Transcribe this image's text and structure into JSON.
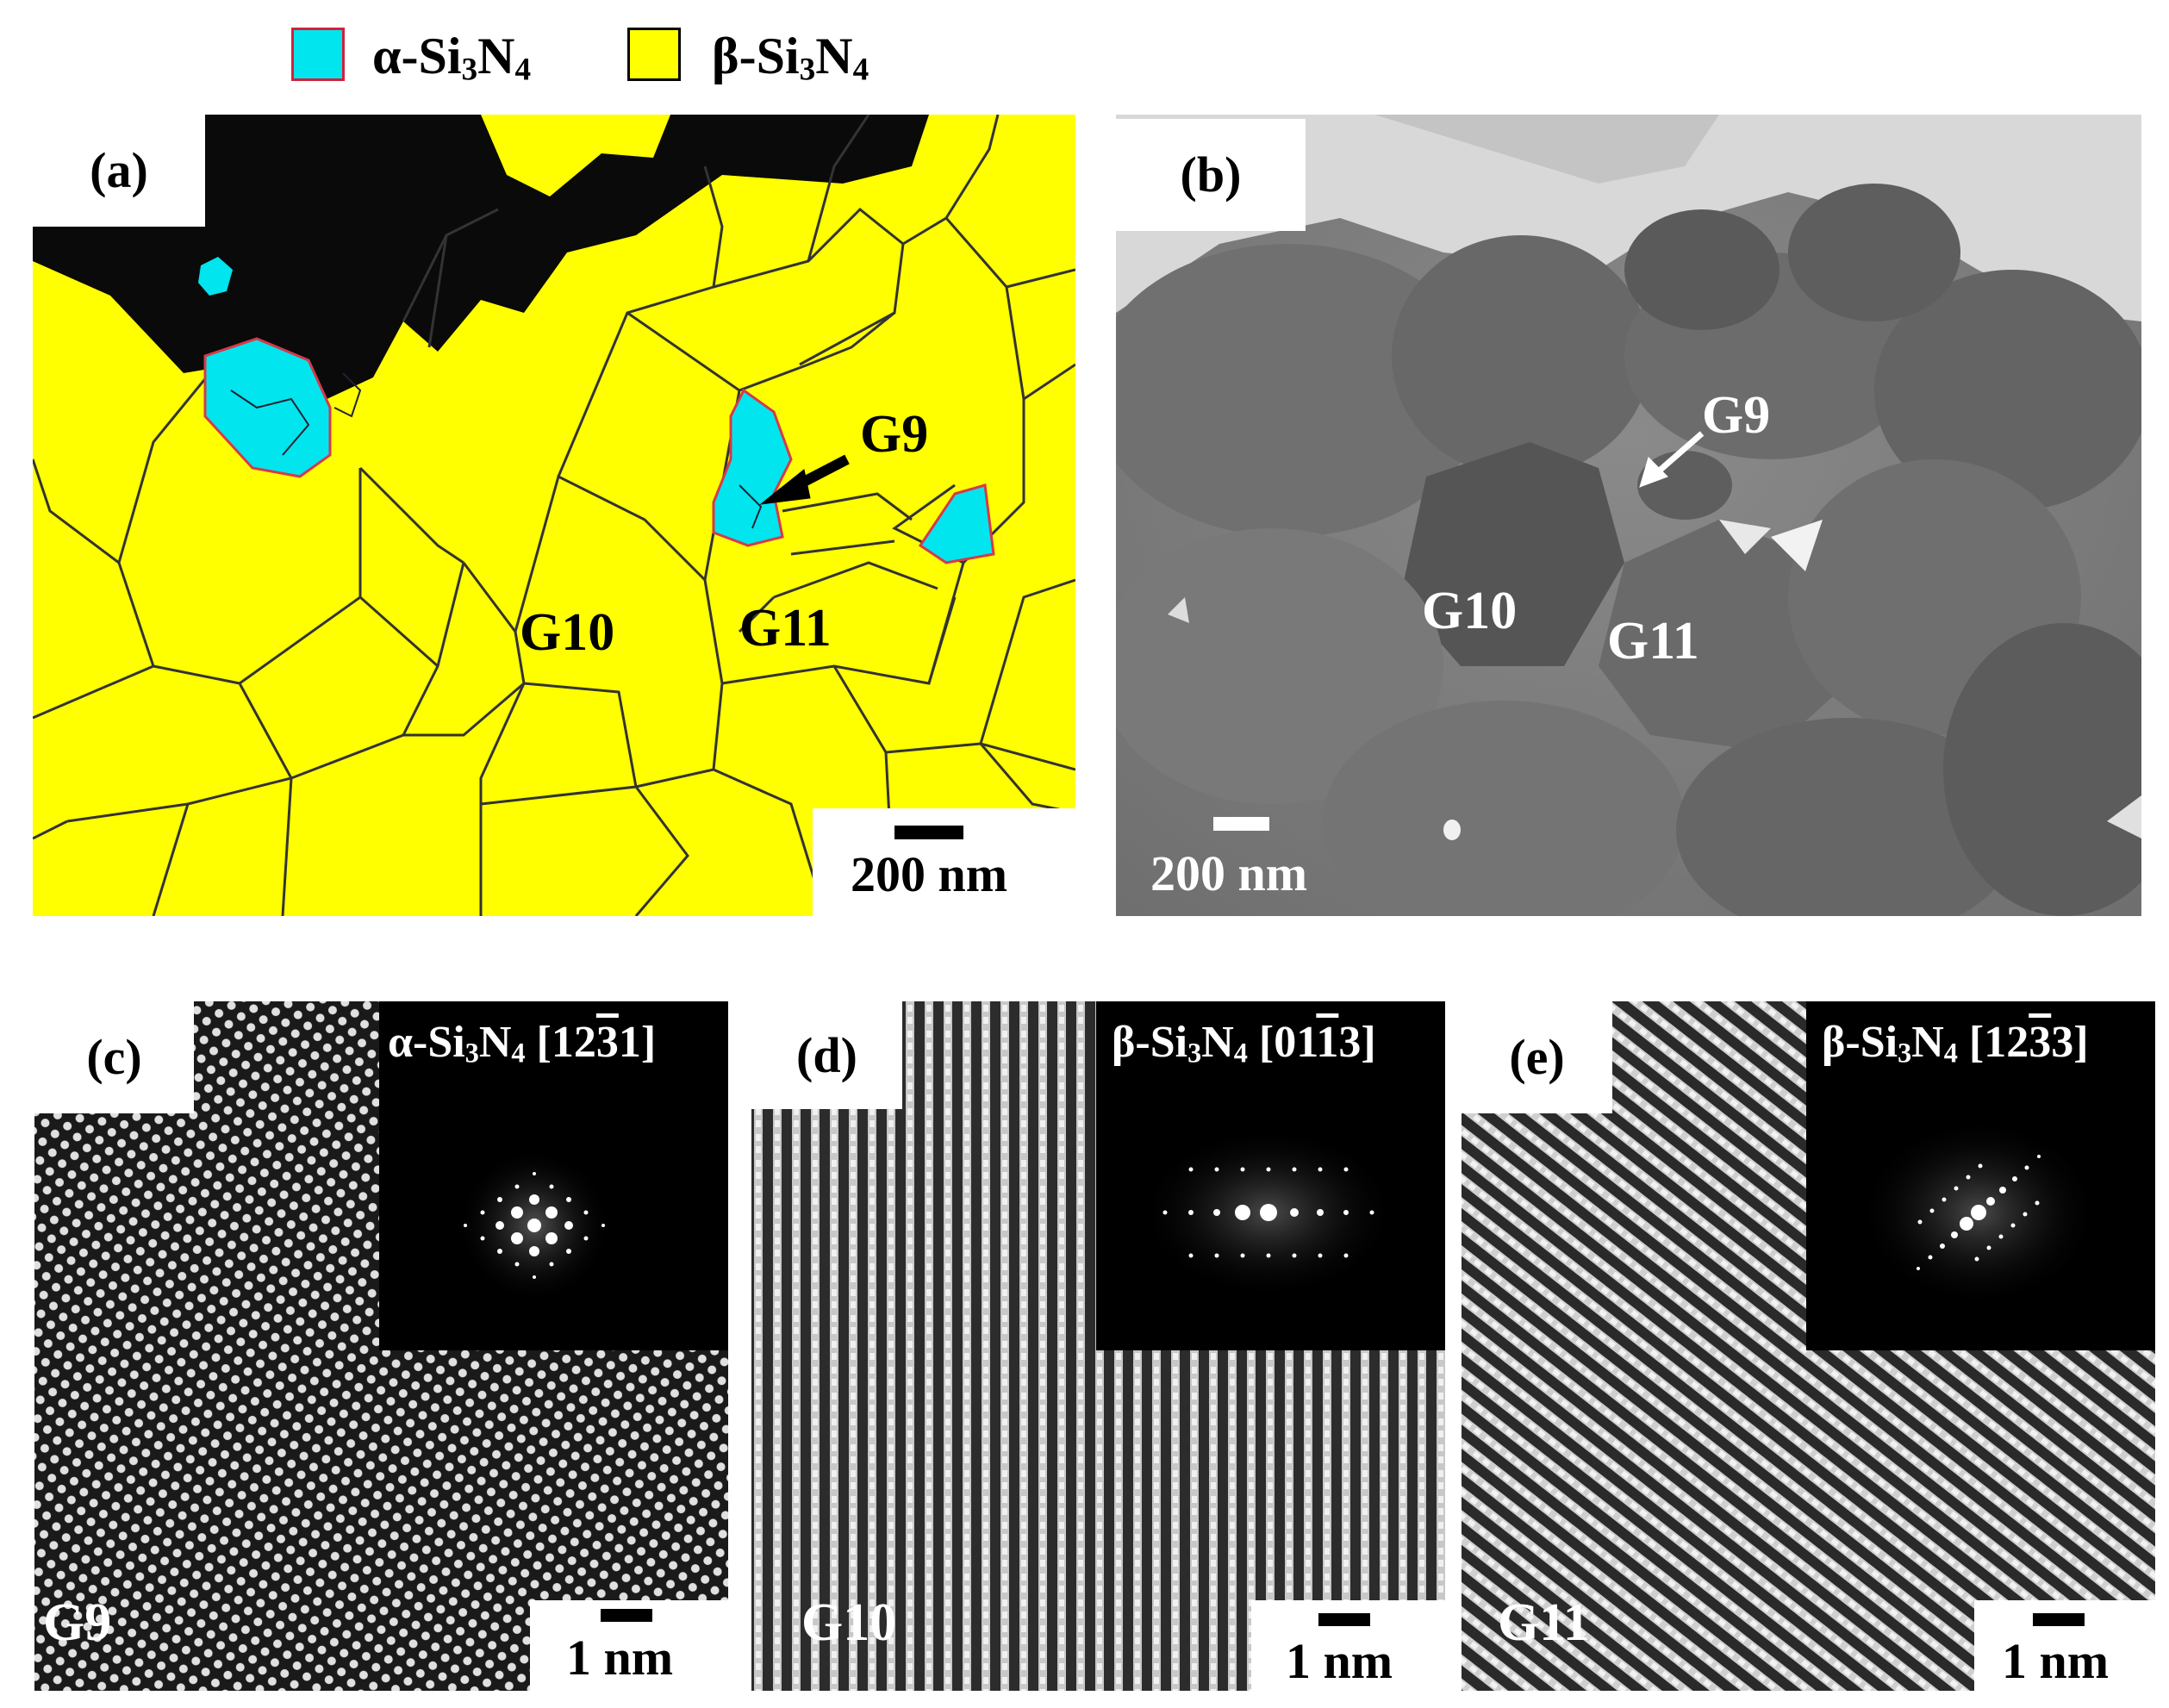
{
  "legend": {
    "alpha": {
      "label": "α-Si",
      "sub1": "3",
      "mid": "N",
      "sub2": "4",
      "color": "#00e5ee"
    },
    "beta": {
      "label": "β-Si",
      "sub1": "3",
      "mid": "N",
      "sub2": "4",
      "color": "#ffff00"
    }
  },
  "panel_a": {
    "tag": "(a)",
    "grain_g9": "G9",
    "grain_g10": "G10",
    "grain_g11": "G11",
    "scale": "200 nm"
  },
  "panel_b": {
    "tag": "(b)",
    "grain_g9": "G9",
    "grain_g10": "G10",
    "grain_g11": "G11",
    "scale": "200 nm"
  },
  "panel_c": {
    "tag": "(c)",
    "grain": "G9",
    "scale": "1 nm",
    "inset": {
      "phase": "α-Si",
      "sub1": "3",
      "mid": "N",
      "sub2": "4",
      "axis_pre": " [12",
      "axis_bar": "3",
      "axis_post": "1]"
    }
  },
  "panel_d": {
    "tag": "(d)",
    "grain": "G10",
    "scale": "1 nm",
    "inset": {
      "phase": "β-Si",
      "sub1": "3",
      "mid": "N",
      "sub2": "4",
      "axis_pre": " [01",
      "axis_bar": "1",
      "axis_post": "3]"
    }
  },
  "panel_e": {
    "tag": "(e)",
    "grain": "G11",
    "scale": "1 nm",
    "inset": {
      "phase": "β-Si",
      "sub1": "3",
      "mid": "N",
      "sub2": "4",
      "axis_pre": " [12",
      "axis_bar": "3",
      "axis_post": "3]"
    }
  }
}
